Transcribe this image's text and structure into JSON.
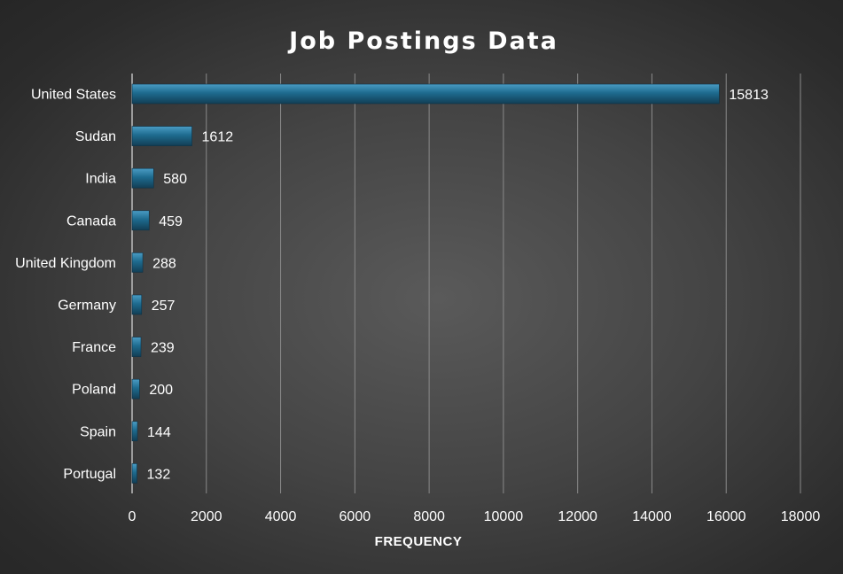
{
  "chart_data": {
    "type": "bar",
    "orientation": "horizontal",
    "title": "Job Postings Data",
    "xlabel": "FREQUENCY",
    "ylabel": "",
    "categories": [
      "United States",
      "Sudan",
      "India",
      "Canada",
      "United Kingdom",
      "Germany",
      "France",
      "Poland",
      "Spain",
      "Portugal"
    ],
    "values": [
      15813,
      1612,
      580,
      459,
      288,
      257,
      239,
      200,
      144,
      132
    ],
    "value_labels": [
      "15813",
      "1612",
      "580",
      "459",
      "288",
      "257",
      "239",
      "200",
      "144",
      "132"
    ],
    "xlim": [
      0,
      18000
    ],
    "xticks": [
      0,
      2000,
      4000,
      6000,
      8000,
      10000,
      12000,
      14000,
      16000,
      18000
    ],
    "xtick_labels": [
      "0",
      "2000",
      "4000",
      "6000",
      "8000",
      "10000",
      "12000",
      "14000",
      "16000",
      "18000"
    ],
    "grid": "vertical",
    "legend": "none",
    "bar_color": "#1e6b8f",
    "bar_highlight": "#4a9cc4",
    "bar_shadow": "#123e55"
  }
}
